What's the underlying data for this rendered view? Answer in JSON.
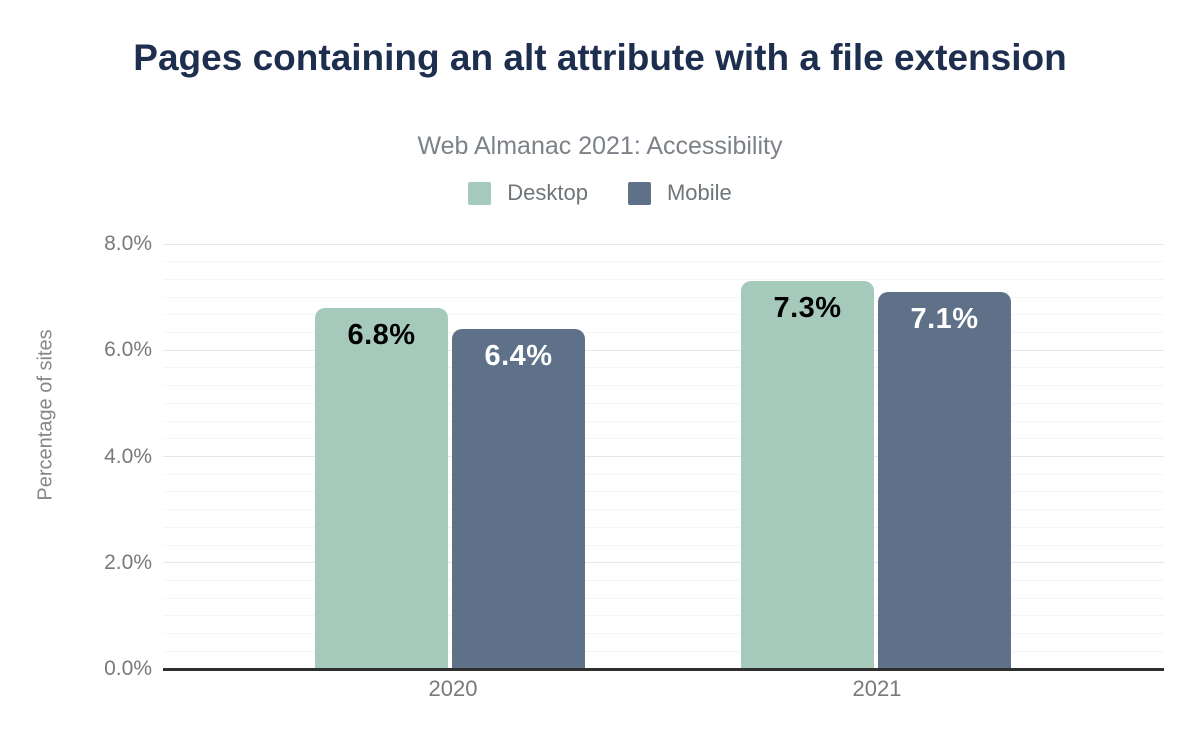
{
  "header": {
    "title": "Pages containing an alt attribute with a file extension",
    "subtitle": "Web Almanac 2021: Accessibility"
  },
  "chart_data": {
    "type": "bar",
    "title": "Pages containing an alt attribute with a file extension",
    "subtitle": "Web Almanac 2021: Accessibility",
    "categories": [
      "2020",
      "2021"
    ],
    "series": [
      {
        "name": "Desktop",
        "color": "#a5cabb",
        "label_color": "#000000",
        "values": [
          6.8,
          7.3
        ],
        "labels": [
          "6.8%",
          "7.3%"
        ]
      },
      {
        "name": "Mobile",
        "color": "#5f7189",
        "label_color": "#ffffff",
        "values": [
          6.4,
          7.1
        ],
        "labels": [
          "6.4%",
          "7.1%"
        ]
      }
    ],
    "ylabel": "Percentage of sites",
    "xlabel": "",
    "ylim": [
      0,
      8
    ],
    "ytick_values": [
      0,
      2,
      4,
      6,
      8
    ],
    "ytick_labels": [
      "0.0%",
      "2.0%",
      "4.0%",
      "6.0%",
      "8.0%"
    ],
    "grid": {
      "major_every": 2,
      "minor_every": 0.4,
      "minor_on": true
    },
    "legend_position": "top"
  },
  "legend": {
    "items": [
      {
        "label": "Desktop",
        "color": "#a5cabb"
      },
      {
        "label": "Mobile",
        "color": "#5f7189"
      }
    ]
  },
  "colors": {
    "title": "#1d2e4f",
    "subtitle": "#7c8288",
    "axis_text": "#77797d",
    "axis_line": "#2f2f2f",
    "grid_major": "#e7e7e7",
    "grid_minor": "#f5f5f5"
  }
}
